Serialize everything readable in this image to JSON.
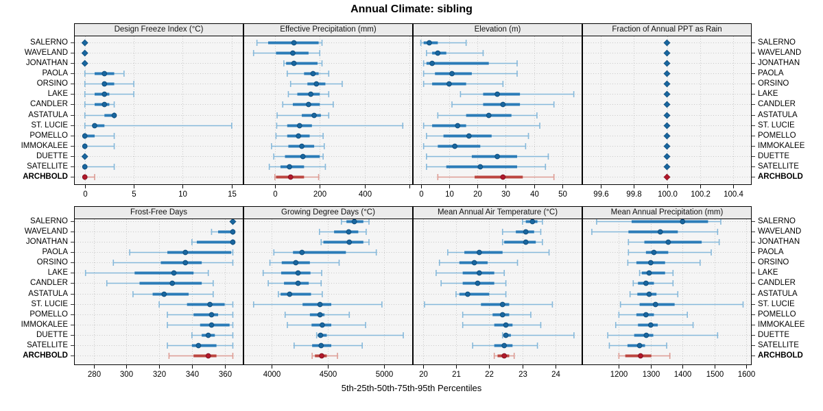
{
  "title": "Annual Climate: sibling",
  "xlabel": "5th-25th-50th-75th-95th Percentiles",
  "colors": {
    "panel_bg": "#f5f5f5",
    "grid": "#c5c5c5",
    "strip_bg": "#ebebeb",
    "border": "#000000",
    "blue_whisker": "#85b8da",
    "blue_bar": "#2b7cb8",
    "blue_dot": "#19669f",
    "blue_dot_stroke": "#0e4d7d",
    "red_whisker": "#dd9c94",
    "red_bar": "#bc4640",
    "red_dot": "#b2182b",
    "red_dot_stroke": "#821220"
  },
  "chart_data": {
    "type": "dotplot-percentile-intervals",
    "layout": "2 rows x 4 columns, shared site axis",
    "percentiles": [
      "5th",
      "25th",
      "50th",
      "75th",
      "95th"
    ],
    "highlight_site": "ARCHBOLD",
    "sites": [
      "SALERNO",
      "WAVELAND",
      "JONATHAN",
      "PAOLA",
      "ORSINO",
      "LAKE",
      "CANDLER",
      "ASTATULA",
      "ST. LUCIE",
      "POMELLO",
      "IMMOKALEE",
      "DUETTE",
      "SATELLITE",
      "ARCHBOLD"
    ],
    "panels": [
      {
        "title": "Design Freeze Index (°C)",
        "row": 0,
        "col": 0,
        "xlim": [
          -1.1,
          16.2
        ],
        "ticks": [
          0,
          5,
          10,
          15
        ],
        "tick_labels": [
          "0",
          "5",
          "10",
          "15"
        ],
        "series": [
          [
            0,
            0,
            0,
            0,
            0
          ],
          [
            0,
            0,
            0,
            0,
            0
          ],
          [
            0,
            0,
            0,
            0,
            0
          ],
          [
            0,
            1,
            2,
            3,
            4
          ],
          [
            0,
            2,
            2,
            3,
            5
          ],
          [
            0,
            1,
            2,
            2.5,
            5
          ],
          [
            0,
            1,
            2,
            2.5,
            3
          ],
          [
            0,
            2,
            3,
            3,
            3
          ],
          [
            0,
            1,
            1,
            2,
            15
          ],
          [
            0,
            0,
            0,
            1,
            3
          ],
          [
            0,
            0,
            0,
            0,
            3
          ],
          [
            0,
            0,
            0,
            0,
            0
          ],
          [
            0,
            0,
            0,
            0,
            3
          ],
          [
            0,
            0,
            0,
            0,
            1
          ]
        ]
      },
      {
        "title": "Effective Precipitation (mm)",
        "row": 0,
        "col": 1,
        "xlim": [
          -140,
          615
        ],
        "ticks": [
          0,
          200,
          400,
          600
        ],
        "tick_labels": [
          "0",
          "200",
          "400",
          ""
        ],
        "series": [
          [
            -80,
            -30,
            85,
            195,
            210
          ],
          [
            -95,
            5,
            80,
            150,
            200
          ],
          [
            40,
            50,
            85,
            190,
            210
          ],
          [
            55,
            130,
            170,
            195,
            240
          ],
          [
            70,
            145,
            185,
            225,
            300
          ],
          [
            60,
            100,
            160,
            200,
            240
          ],
          [
            35,
            80,
            150,
            200,
            260
          ],
          [
            10,
            120,
            175,
            205,
            240
          ],
          [
            8,
            55,
            110,
            165,
            570
          ],
          [
            5,
            55,
            105,
            155,
            215
          ],
          [
            -15,
            60,
            120,
            175,
            220
          ],
          [
            -5,
            45,
            125,
            200,
            215
          ],
          [
            -25,
            25,
            65,
            130,
            225
          ],
          [
            0,
            5,
            70,
            130,
            195
          ]
        ]
      },
      {
        "title": "Elevation (m)",
        "row": 0,
        "col": 2,
        "xlim": [
          -2.8,
          57
        ],
        "ticks": [
          0,
          10,
          20,
          30,
          40,
          50
        ],
        "tick_labels": [
          "0",
          "10",
          "20",
          "30",
          "40",
          "50"
        ],
        "series": [
          [
            0,
            1,
            3,
            6,
            16
          ],
          [
            2,
            4,
            6,
            9,
            22
          ],
          [
            1,
            2,
            4,
            24,
            34
          ],
          [
            1,
            5,
            11,
            18,
            34
          ],
          [
            1,
            4,
            10,
            16,
            29
          ],
          [
            14,
            22,
            27,
            35,
            54
          ],
          [
            11,
            22,
            29,
            35,
            47
          ],
          [
            6,
            16,
            24,
            32,
            41
          ],
          [
            1,
            4,
            13,
            16,
            42
          ],
          [
            2,
            8,
            17,
            25,
            38
          ],
          [
            1,
            6,
            12,
            21,
            37
          ],
          [
            2,
            18,
            27,
            34,
            45
          ],
          [
            2,
            9,
            21,
            34,
            44
          ],
          [
            6,
            19,
            29,
            36,
            47
          ]
        ]
      },
      {
        "title": "Fraction of Annual PPT as Rain",
        "row": 0,
        "col": 3,
        "xlim": [
          99.49,
          100.51
        ],
        "ticks": [
          99.6,
          99.8,
          100.0,
          100.2,
          100.4
        ],
        "tick_labels": [
          "99.6",
          "99.8",
          "100.0",
          "100.2",
          "100.4"
        ],
        "series": [
          [
            100,
            100,
            100,
            100,
            100
          ],
          [
            100,
            100,
            100,
            100,
            100
          ],
          [
            100,
            100,
            100,
            100,
            100
          ],
          [
            100,
            100,
            100,
            100,
            100
          ],
          [
            100,
            100,
            100,
            100,
            100
          ],
          [
            100,
            100,
            100,
            100,
            100
          ],
          [
            100,
            100,
            100,
            100,
            100
          ],
          [
            100,
            100,
            100,
            100,
            100
          ],
          [
            100,
            100,
            100,
            100,
            100
          ],
          [
            100,
            100,
            100,
            100,
            100
          ],
          [
            100,
            100,
            100,
            100,
            100
          ],
          [
            100,
            100,
            100,
            100,
            100
          ],
          [
            100,
            100,
            100,
            100,
            100
          ],
          [
            100,
            100,
            100,
            100,
            100
          ]
        ]
      },
      {
        "title": "Frost-Free Days",
        "row": 1,
        "col": 0,
        "xlim": [
          268,
          371.5
        ],
        "ticks": [
          280,
          300,
          320,
          340,
          360
        ],
        "tick_labels": [
          "280",
          "300",
          "320",
          "340",
          "360"
        ],
        "series": [
          [
            365,
            365,
            365,
            365,
            365
          ],
          [
            352,
            356,
            365,
            365,
            365
          ],
          [
            340,
            343,
            365,
            365,
            365
          ],
          [
            302,
            325,
            336,
            364,
            365
          ],
          [
            292,
            321,
            336,
            346,
            365
          ],
          [
            275,
            305,
            329,
            341,
            350
          ],
          [
            288,
            308,
            328,
            346,
            353
          ],
          [
            304,
            316,
            323,
            338,
            353
          ],
          [
            320,
            337,
            351,
            360,
            365
          ],
          [
            325,
            341,
            352,
            356,
            365
          ],
          [
            325,
            345,
            352,
            363,
            365
          ],
          [
            340,
            346,
            350,
            354,
            365
          ],
          [
            325,
            340,
            344,
            355,
            365
          ],
          [
            326,
            341,
            350,
            355,
            365
          ]
        ]
      },
      {
        "title": "Growing Degree Days (°C)",
        "row": 1,
        "col": 1,
        "xlim": [
          3750,
          5255
        ],
        "ticks": [
          4000,
          4500,
          5000
        ],
        "tick_labels": [
          "4000",
          "4500",
          "5000"
        ],
        "series": [
          [
            4620,
            4665,
            4735,
            4815,
            4865
          ],
          [
            4425,
            4555,
            4685,
            4770,
            4840
          ],
          [
            4440,
            4460,
            4690,
            4815,
            4865
          ],
          [
            4020,
            4190,
            4270,
            4660,
            4930
          ],
          [
            3985,
            4090,
            4215,
            4340,
            4600
          ],
          [
            3925,
            4085,
            4235,
            4345,
            4445
          ],
          [
            3970,
            4110,
            4235,
            4330,
            4440
          ],
          [
            4060,
            4080,
            4160,
            4350,
            4450
          ],
          [
            3840,
            4275,
            4430,
            4530,
            4980
          ],
          [
            4120,
            4340,
            4430,
            4470,
            4690
          ],
          [
            4140,
            4355,
            4450,
            4530,
            4835
          ],
          [
            4400,
            4410,
            4435,
            4490,
            5170
          ],
          [
            4200,
            4360,
            4440,
            4530,
            4805
          ],
          [
            4360,
            4385,
            4445,
            4490,
            4585
          ]
        ]
      },
      {
        "title": "Mean Annual Air Temperature (°C)",
        "row": 1,
        "col": 2,
        "xlim": [
          19.7,
          24.8
        ],
        "ticks": [
          20,
          21,
          22,
          23,
          24
        ],
        "tick_labels": [
          "20",
          "21",
          "22",
          "23",
          "24"
        ],
        "series": [
          [
            23.0,
            23.1,
            23.3,
            23.45,
            23.6
          ],
          [
            22.4,
            22.8,
            23.1,
            23.35,
            23.55
          ],
          [
            22.4,
            22.45,
            23.1,
            23.4,
            23.6
          ],
          [
            20.75,
            21.25,
            21.7,
            22.4,
            23.8
          ],
          [
            20.5,
            21.1,
            21.55,
            21.95,
            22.85
          ],
          [
            20.4,
            21.2,
            21.7,
            22.15,
            22.45
          ],
          [
            20.55,
            21.2,
            21.65,
            22.15,
            22.5
          ],
          [
            21.0,
            21.1,
            21.35,
            22.0,
            22.5
          ],
          [
            20.05,
            21.75,
            22.4,
            22.6,
            23.9
          ],
          [
            21.2,
            22.1,
            22.4,
            22.6,
            23.25
          ],
          [
            21.2,
            22.15,
            22.5,
            22.7,
            23.55
          ],
          [
            22.4,
            22.42,
            22.5,
            22.65,
            24.55
          ],
          [
            21.5,
            22.15,
            22.45,
            22.7,
            23.45
          ],
          [
            22.15,
            22.25,
            22.45,
            22.6,
            22.75
          ]
        ]
      },
      {
        "title": "Mean Annual Precipitation (mm)",
        "row": 1,
        "col": 3,
        "xlim": [
          1085,
          1617
        ],
        "ticks": [
          1200,
          1300,
          1400,
          1500,
          1600
        ],
        "tick_labels": [
          "1200",
          "1300",
          "1400",
          "1500",
          "1600"
        ],
        "series": [
          [
            1130,
            1240,
            1400,
            1480,
            1520
          ],
          [
            1115,
            1230,
            1330,
            1385,
            1510
          ],
          [
            1230,
            1280,
            1355,
            1460,
            1515
          ],
          [
            1230,
            1285,
            1310,
            1355,
            1490
          ],
          [
            1228,
            1255,
            1300,
            1345,
            1455
          ],
          [
            1265,
            1272,
            1295,
            1345,
            1370
          ],
          [
            1245,
            1260,
            1285,
            1310,
            1370
          ],
          [
            1235,
            1258,
            1295,
            1318,
            1385
          ],
          [
            1205,
            1265,
            1315,
            1375,
            1590
          ],
          [
            1200,
            1255,
            1285,
            1310,
            1415
          ],
          [
            1190,
            1260,
            1300,
            1322,
            1433
          ],
          [
            1165,
            1248,
            1286,
            1308,
            1510
          ],
          [
            1170,
            1227,
            1265,
            1282,
            1350
          ],
          [
            1200,
            1220,
            1268,
            1302,
            1360
          ]
        ]
      }
    ]
  }
}
